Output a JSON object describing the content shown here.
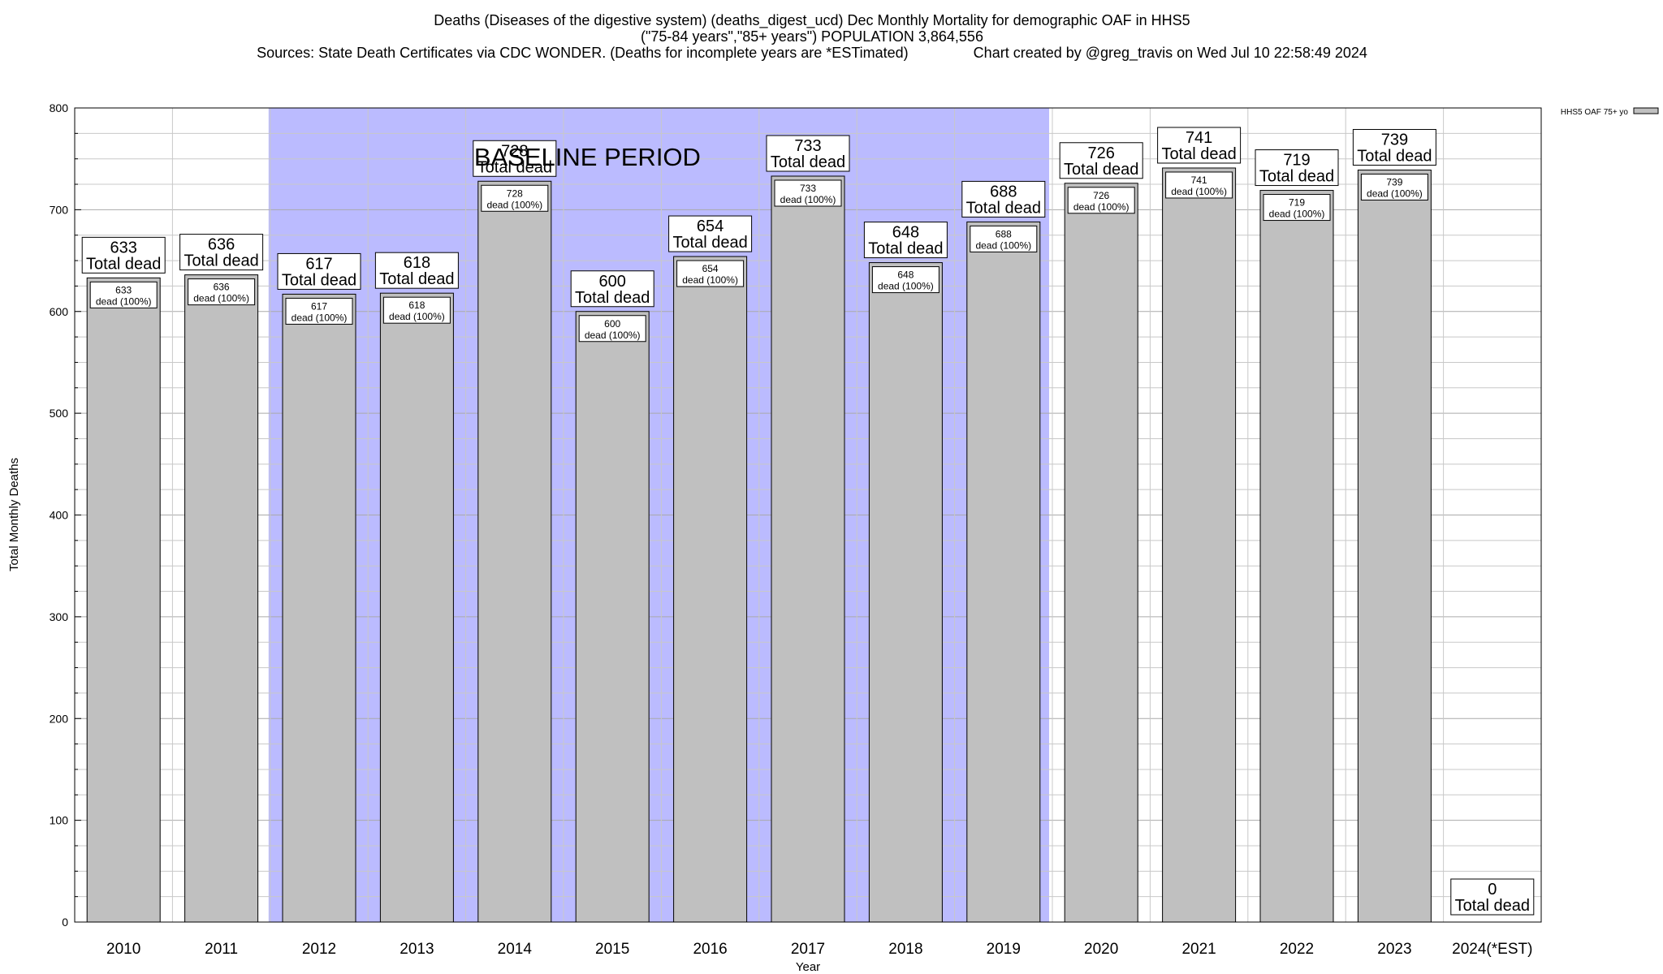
{
  "chart_data": {
    "type": "bar",
    "title_lines": [
      "Deaths (Diseases of the digestive system) (deaths_digest_ucd) Dec Monthly Mortality for demographic OAF in HHS5",
      "(\"75-84 years\",\"85+ years\") POPULATION 3,864,556",
      "Sources: State Death Certificates via CDC WONDER. (Deaths for incomplete years are *ESTimated)                Chart created by @greg_travis on Wed Jul 10 22:58:49 2024"
    ],
    "xlabel": "Year",
    "ylabel": "Total Monthly Deaths",
    "ylim": [
      0,
      800
    ],
    "yticks": [
      0,
      100,
      200,
      300,
      400,
      500,
      600,
      700,
      800
    ],
    "categories": [
      "2010",
      "2011",
      "2012",
      "2013",
      "2014",
      "2015",
      "2016",
      "2017",
      "2018",
      "2019",
      "2020",
      "2021",
      "2022",
      "2023",
      "2024(*EST)"
    ],
    "series": [
      {
        "name": "HHS5 OAF 75+ yo",
        "color": "#c0c0c0",
        "values": [
          633,
          636,
          617,
          618,
          728,
          600,
          654,
          733,
          648,
          688,
          726,
          741,
          719,
          739,
          0
        ]
      }
    ],
    "total_label_text": "Total dead",
    "inner_label_text": "dead (100%)",
    "baseline": {
      "label": "BASELINE PERIOD",
      "start_category": "2012",
      "end_category": "2019",
      "color": "#bbbbff"
    },
    "legend_position": "top-right",
    "grid": true
  }
}
